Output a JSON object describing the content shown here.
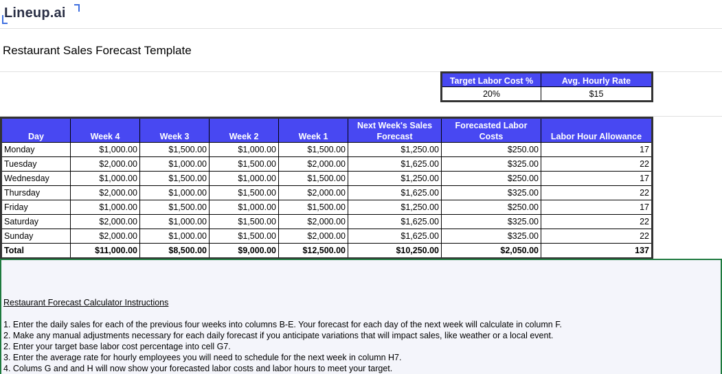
{
  "header": {
    "logo": "Lineup.ai",
    "title": "Restaurant Sales Forecast Template"
  },
  "settings": {
    "headers": [
      "Target Labor Cost %",
      "Avg. Hourly Rate"
    ],
    "values": [
      "20%",
      "$15"
    ]
  },
  "table": {
    "columns": [
      "Day",
      "Week 4",
      "Week 3",
      "Week 2",
      "Week 1",
      "Next Week's Sales Forecast",
      "Forecasted Labor Costs",
      "Labor Hour Allowance"
    ],
    "rows": [
      [
        "Monday",
        "$1,000.00",
        "$1,500.00",
        "$1,000.00",
        "$1,500.00",
        "$1,250.00",
        "$250.00",
        "17"
      ],
      [
        "Tuesday",
        "$2,000.00",
        "$1,000.00",
        "$1,500.00",
        "$2,000.00",
        "$1,625.00",
        "$325.00",
        "22"
      ],
      [
        "Wednesday",
        "$1,000.00",
        "$1,500.00",
        "$1,000.00",
        "$1,500.00",
        "$1,250.00",
        "$250.00",
        "17"
      ],
      [
        "Thursday",
        "$2,000.00",
        "$1,000.00",
        "$1,500.00",
        "$2,000.00",
        "$1,625.00",
        "$325.00",
        "22"
      ],
      [
        "Friday",
        "$1,000.00",
        "$1,500.00",
        "$1,000.00",
        "$1,500.00",
        "$1,250.00",
        "$250.00",
        "17"
      ],
      [
        "Saturday",
        "$2,000.00",
        "$1,000.00",
        "$1,500.00",
        "$2,000.00",
        "$1,625.00",
        "$325.00",
        "22"
      ],
      [
        "Sunday",
        "$2,000.00",
        "$1,000.00",
        "$1,500.00",
        "$2,000.00",
        "$1,625.00",
        "$325.00",
        "22"
      ]
    ],
    "total": [
      "Total",
      "$11,000.00",
      "$8,500.00",
      "$9,000.00",
      "$12,500.00",
      "$10,250.00",
      "$2,050.00",
      "137"
    ]
  },
  "instructions": {
    "title": "Restaurant Forecast Calculator Instructions",
    "items": [
      "1. Enter the daily sales for each of the previous four weeks into columns B-E. Your forecast for each day of the next week will calculate in column F.",
      "2. Make any manual adjustments necessary for each daily forecast if you anticipate variations that will impact sales, like weather or a local event.",
      "2. Enter your target base labor cost percentage into cell G7.",
      "3. Enter the average rate for hourly employees you will need to schedule for the next week in column H7.",
      "4. Colums G and and H will now show your forecasted labor costs and labor hours to meet your target."
    ]
  }
}
